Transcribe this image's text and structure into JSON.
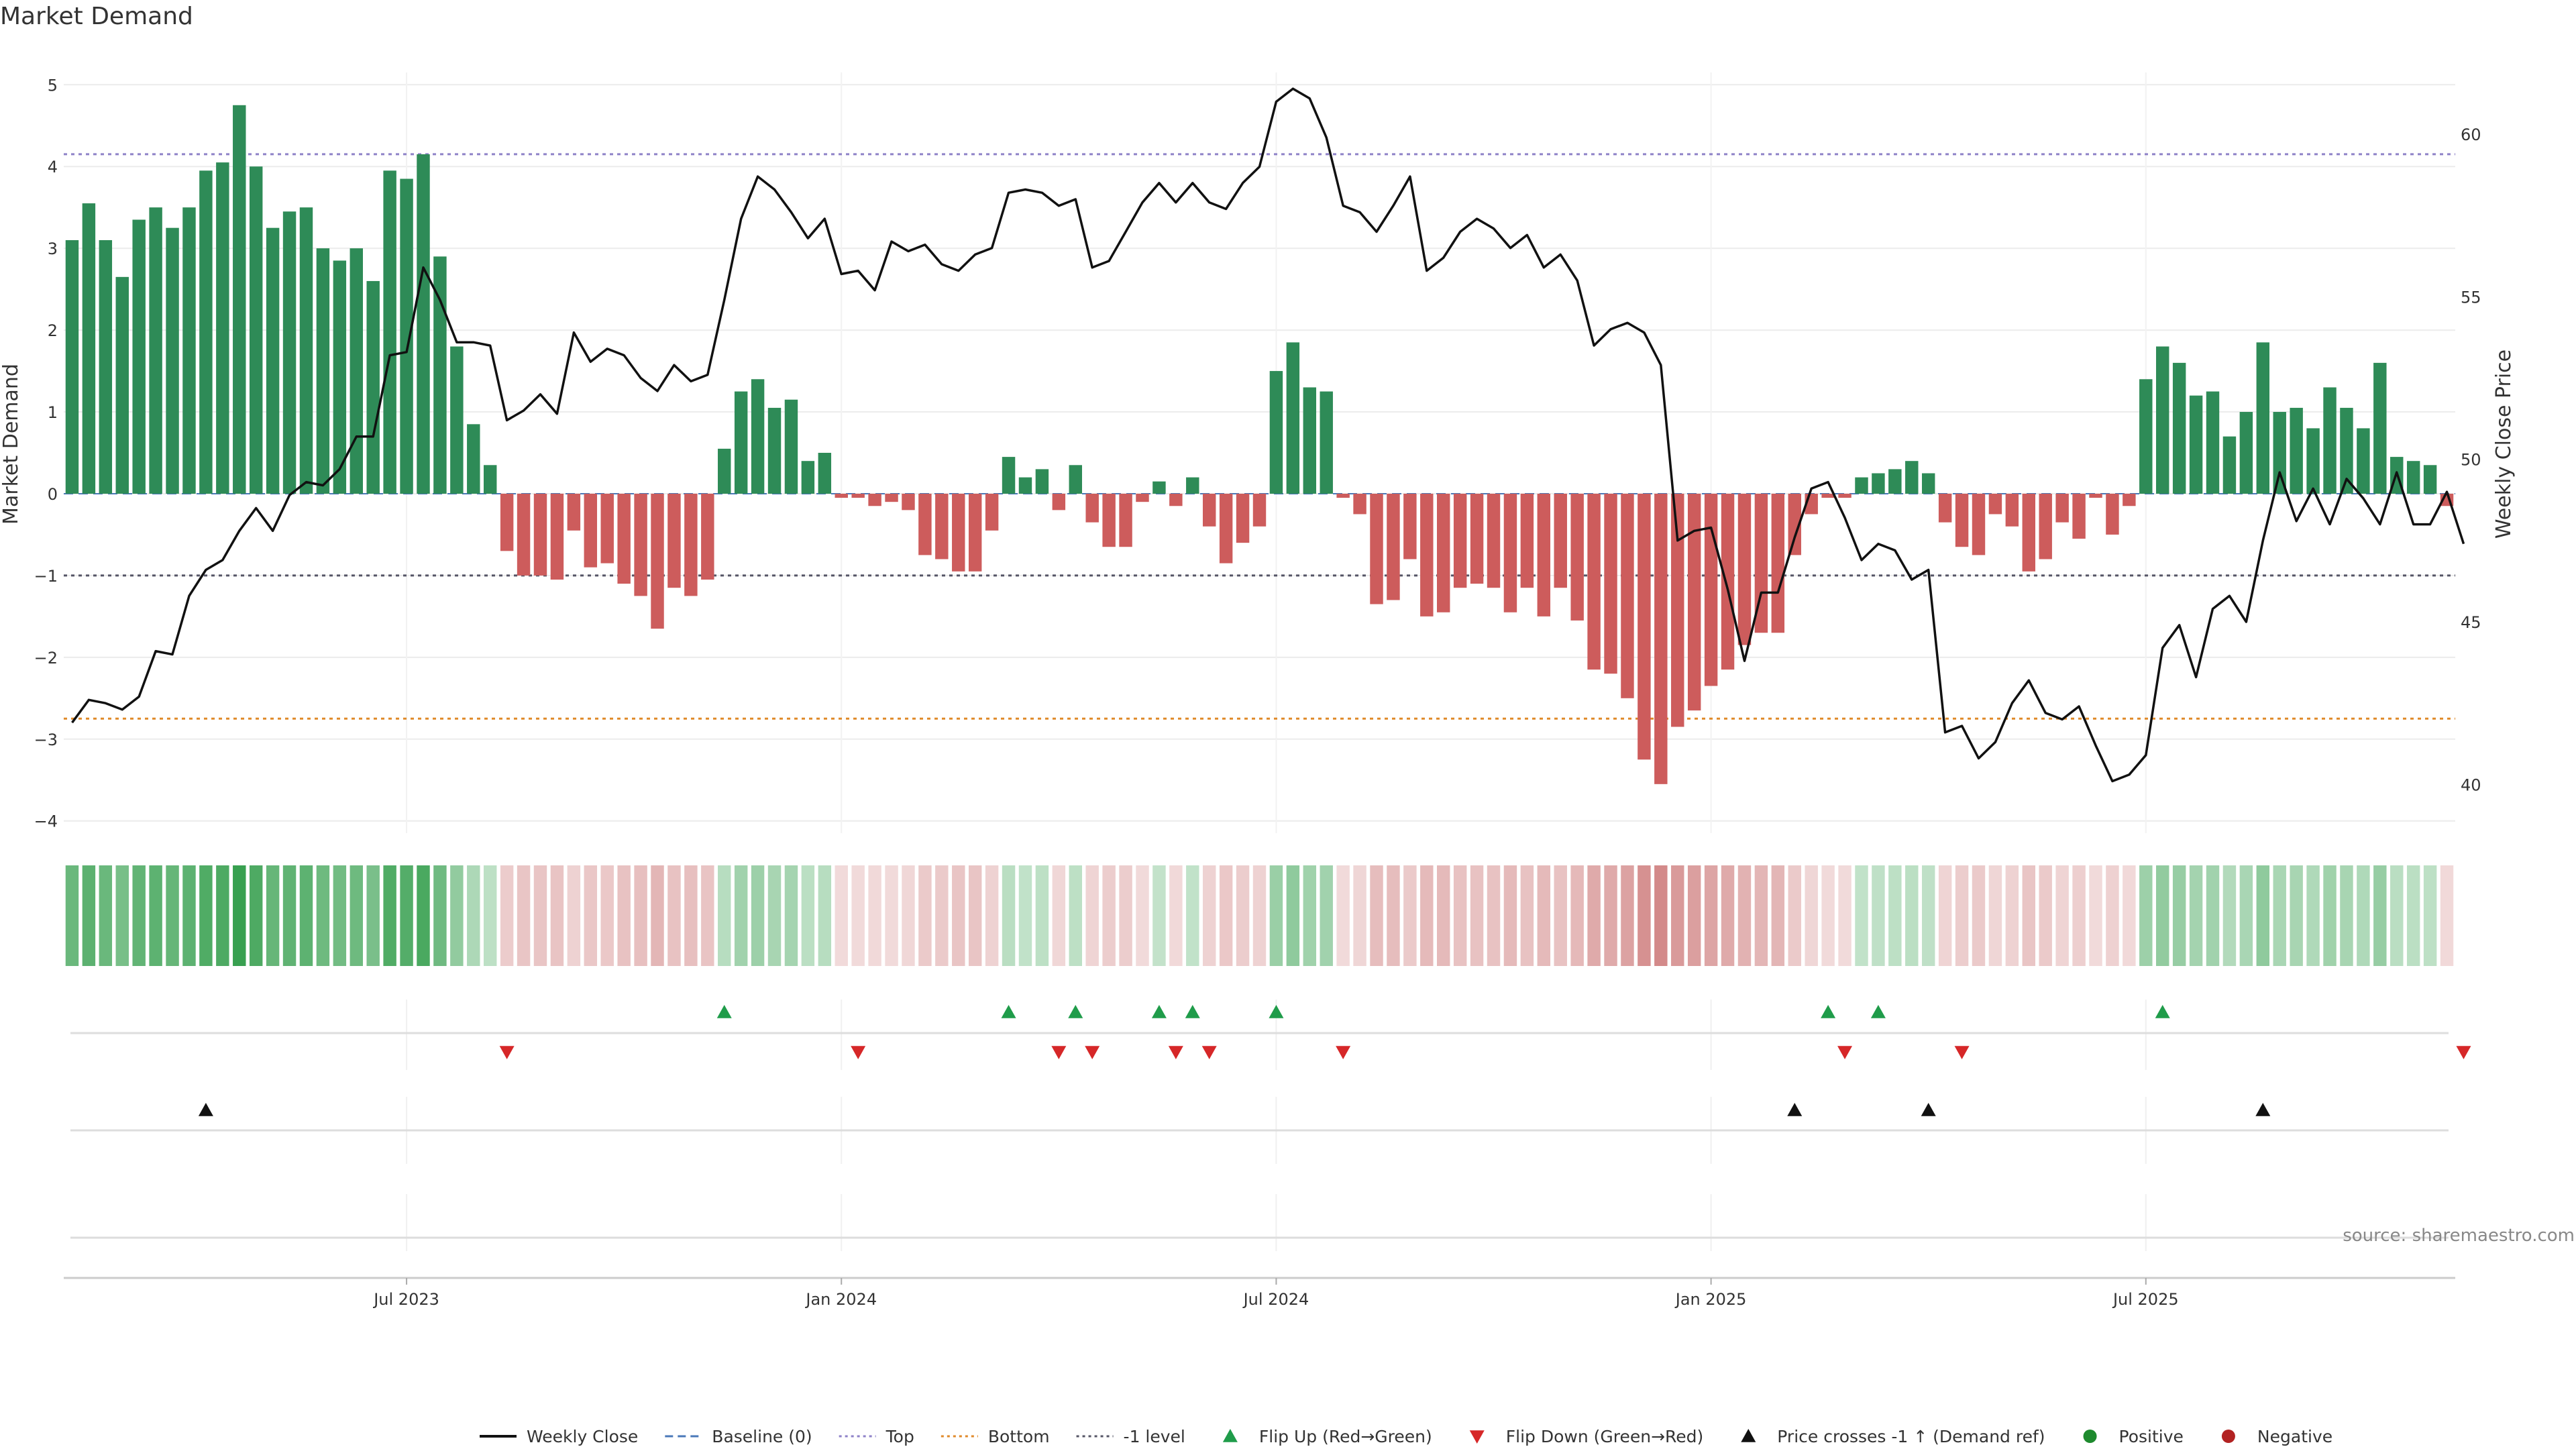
{
  "title": "Market Demand",
  "source_note": "source: sharemaestro.com",
  "colors": {
    "positive": "#2e8b57",
    "negative": "#cd5c5c",
    "price_line": "#111111",
    "top_line": "#8e82c8",
    "bottom_line": "#e08a2a",
    "minus1_line": "#555566",
    "flip_up": "#1f9c4a",
    "flip_down": "#d62728",
    "cross": "#111111",
    "legend_positive": "#1e8a2e",
    "legend_negative": "#b22222"
  },
  "chart_data": {
    "type": "bar",
    "title": "Market Demand",
    "frequency": "weekly",
    "first_week": "2023-03-31",
    "series": [
      {
        "name": "Market Demand",
        "kind": "bar",
        "values": [
          3.1,
          3.55,
          3.1,
          2.65,
          3.35,
          3.5,
          3.25,
          3.5,
          3.95,
          4.05,
          4.75,
          4.0,
          3.25,
          3.45,
          3.5,
          3.0,
          2.85,
          3.0,
          2.6,
          3.95,
          3.85,
          4.15,
          2.9,
          1.8,
          0.85,
          0.35,
          -0.7,
          -1.0,
          -1.0,
          -1.05,
          -0.45,
          -0.9,
          -0.85,
          -1.1,
          -1.25,
          -1.65,
          -1.15,
          -1.25,
          -1.05,
          0.55,
          1.25,
          1.4,
          1.05,
          1.15,
          0.4,
          0.5,
          -0.05,
          -0.05,
          -0.15,
          -0.1,
          -0.2,
          -0.75,
          -0.8,
          -0.95,
          -0.95,
          -0.45,
          0.45,
          0.2,
          0.3,
          -0.2,
          0.35,
          -0.35,
          -0.65,
          -0.65,
          -0.1,
          0.15,
          -0.15,
          0.2,
          -0.4,
          -0.85,
          -0.6,
          -0.4,
          1.5,
          1.85,
          1.3,
          1.25,
          -0.05,
          -0.25,
          -1.35,
          -1.3,
          -0.8,
          -1.5,
          -1.45,
          -1.15,
          -1.1,
          -1.15,
          -1.45,
          -1.15,
          -1.5,
          -1.15,
          -1.55,
          -2.15,
          -2.2,
          -2.5,
          -3.25,
          -3.55,
          -2.85,
          -2.65,
          -2.35,
          -2.15,
          -1.85,
          -1.7,
          -1.7,
          -0.75,
          -0.25,
          -0.05,
          -0.05,
          0.2,
          0.25,
          0.3,
          0.4,
          0.25,
          -0.35,
          -0.65,
          -0.75,
          -0.25,
          -0.4,
          -0.95,
          -0.8,
          -0.35,
          -0.55,
          -0.05,
          -0.5,
          -0.15,
          1.4,
          1.8,
          1.6,
          1.2,
          1.25,
          0.7,
          1.0,
          1.85,
          1.0,
          1.05,
          0.8,
          1.3,
          1.05,
          0.8,
          1.6,
          0.45,
          0.4,
          0.35,
          -0.15
        ]
      },
      {
        "name": "Weekly Close",
        "kind": "line",
        "axis": "right",
        "values": [
          41.9,
          42.6,
          42.5,
          42.3,
          42.7,
          44.1,
          44.0,
          45.8,
          46.6,
          46.9,
          47.8,
          48.5,
          47.8,
          48.9,
          49.3,
          49.2,
          49.7,
          50.7,
          50.7,
          53.2,
          53.3,
          55.9,
          54.9,
          53.6,
          53.6,
          53.5,
          51.2,
          51.5,
          52.0,
          51.4,
          53.9,
          53.0,
          53.4,
          53.2,
          52.5,
          52.1,
          52.9,
          52.4,
          52.6,
          54.9,
          57.4,
          58.7,
          58.3,
          57.6,
          56.8,
          57.4,
          55.7,
          55.8,
          55.2,
          56.7,
          56.4,
          56.6,
          56.0,
          55.8,
          56.3,
          56.5,
          58.2,
          58.3,
          58.2,
          57.8,
          58.0,
          55.9,
          56.1,
          57.0,
          57.9,
          58.5,
          57.9,
          58.5,
          57.9,
          57.7,
          58.5,
          59.0,
          61.0,
          61.4,
          61.1,
          59.9,
          57.8,
          57.6,
          57.0,
          57.8,
          58.7,
          55.8,
          56.2,
          57.0,
          57.4,
          57.1,
          56.5,
          56.9,
          55.9,
          56.3,
          55.5,
          53.5,
          54.0,
          54.2,
          53.9,
          52.9,
          47.5,
          47.8,
          47.9,
          46.0,
          43.8,
          45.9,
          45.9,
          47.6,
          49.1,
          49.3,
          48.2,
          46.9,
          47.4,
          47.2,
          46.3,
          46.6,
          41.6,
          41.8,
          40.8,
          41.3,
          42.5,
          43.2,
          42.2,
          42.0,
          42.4,
          41.2,
          40.1,
          40.3,
          40.9,
          44.2,
          44.9,
          43.3,
          45.4,
          45.8,
          45.0,
          47.5,
          49.6,
          48.1,
          49.1,
          48.0,
          49.4,
          48.8,
          48.0,
          49.6,
          48.0,
          48.0,
          49.0,
          47.4
        ]
      }
    ],
    "reference_lines": [
      {
        "name": "Baseline (0)",
        "value": 0
      },
      {
        "name": "Top",
        "value": 4.15
      },
      {
        "name": "Bottom",
        "value": -2.75
      },
      {
        "name": "-1 level",
        "value": -1
      }
    ],
    "flip_up_weeks": [
      39,
      56,
      60,
      65,
      67,
      72,
      105,
      108,
      125
    ],
    "flip_down_weeks": [
      26,
      47,
      59,
      61,
      66,
      68,
      76,
      106,
      113,
      143
    ],
    "price_cross_weeks": [
      8,
      103,
      111,
      131
    ],
    "ylabel": "Market Demand",
    "y2label": "Weekly Close Price",
    "ylim": [
      -4.15,
      5.15
    ],
    "y2lim": [
      38.5,
      61.9
    ],
    "y_ticks": [
      5,
      4,
      3,
      2,
      1,
      0,
      -1,
      -2,
      -3,
      -4
    ],
    "y_tick_labels": [
      "5",
      "4",
      "3",
      "2",
      "1",
      "0",
      "−1",
      "−2",
      "−3",
      "−4"
    ],
    "y2_ticks": [
      60,
      55,
      50,
      45,
      40
    ],
    "y2_tick_labels": [
      "60",
      "55",
      "50",
      "45",
      "40"
    ],
    "x_tick_weeks": [
      20,
      46,
      72,
      98,
      124
    ],
    "x_tick_labels": [
      "Jul 2023",
      "Jan 2024",
      "Jul 2024",
      "Jan 2025",
      "Jul 2025"
    ]
  },
  "legend": {
    "items": [
      {
        "label": "Weekly Close",
        "symbol": "line",
        "key": "price_line"
      },
      {
        "label": "Baseline (0)",
        "symbol": "dashed",
        "key": "baseline"
      },
      {
        "label": "Top",
        "symbol": "dotted",
        "key": "top_line"
      },
      {
        "label": "Bottom",
        "symbol": "dotted",
        "key": "bottom_line"
      },
      {
        "label": "-1 level",
        "symbol": "dotted",
        "key": "minus1_line"
      },
      {
        "label": "Flip Up (Red→Green)",
        "symbol": "tri-up",
        "key": "flip_up"
      },
      {
        "label": "Flip Down (Green→Red)",
        "symbol": "tri-down",
        "key": "flip_down"
      },
      {
        "label": "Price crosses -1 ↑ (Demand ref)",
        "symbol": "tri-up",
        "key": "cross"
      },
      {
        "label": "Positive",
        "symbol": "dot",
        "key": "legend_positive"
      },
      {
        "label": "Negative",
        "symbol": "dot",
        "key": "legend_negative"
      }
    ]
  }
}
